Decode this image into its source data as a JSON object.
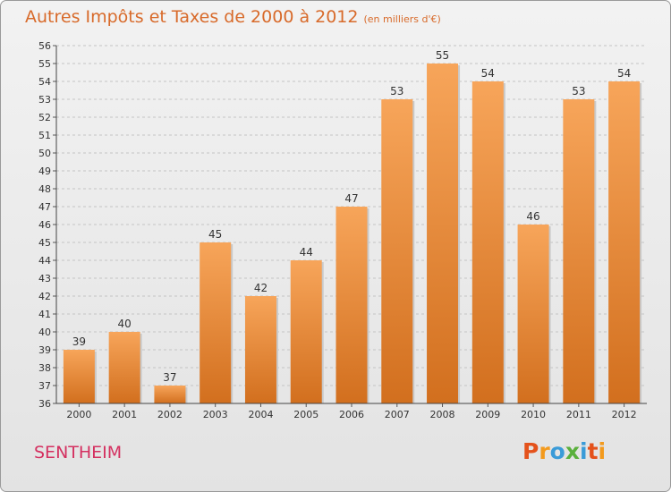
{
  "chart_data": {
    "type": "bar",
    "title": "Autres Impôts et Taxes de 2000 à 2012",
    "unit_note": "(en milliers d'€)",
    "categories": [
      "2000",
      "2001",
      "2002",
      "2003",
      "2004",
      "2005",
      "2006",
      "2007",
      "2008",
      "2009",
      "2010",
      "2011",
      "2012"
    ],
    "values": [
      39,
      40,
      37,
      45,
      42,
      44,
      47,
      53,
      55,
      54,
      46,
      53,
      54
    ],
    "ylim": [
      36,
      56
    ],
    "yticks": [
      36,
      37,
      38,
      39,
      40,
      41,
      42,
      43,
      44,
      45,
      46,
      47,
      48,
      49,
      50,
      51,
      52,
      53,
      54,
      55,
      56
    ],
    "grid": "horizontal dashed",
    "bar_color_top": "#f7a55a",
    "bar_color_bottom": "#d26f1e"
  },
  "footer": {
    "location": "SENTHEIM",
    "logo_text": "Proxiti",
    "logo_colors": [
      "#e4521b",
      "#f39a1d",
      "#3a9bd8",
      "#5ab03c",
      "#3a9bd8",
      "#e4521b",
      "#f39a1d"
    ]
  }
}
